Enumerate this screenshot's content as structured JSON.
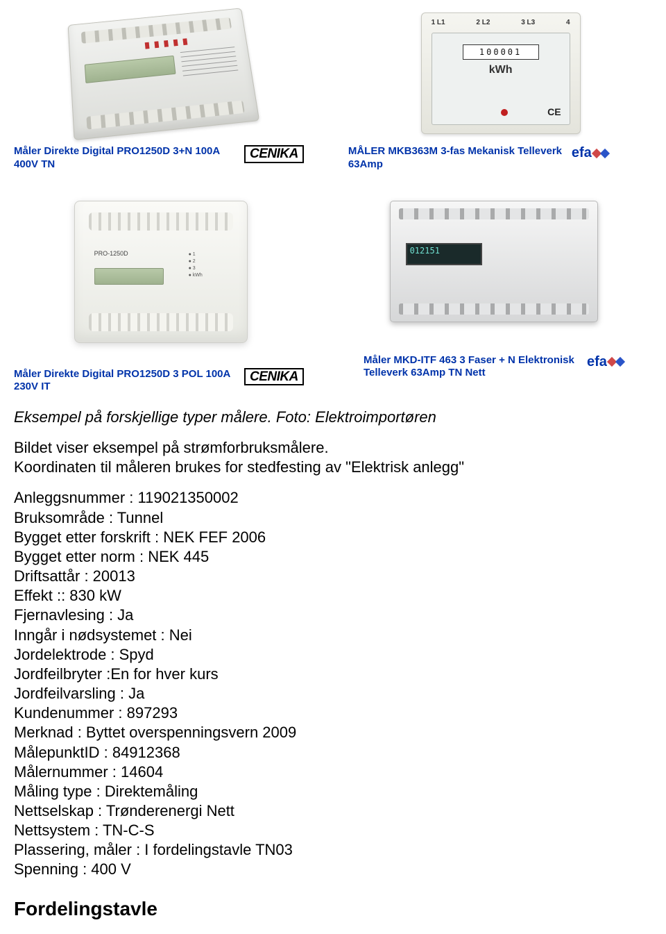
{
  "products": [
    {
      "title": "Måler Direkte Digital PRO1250D 3+N 100A 400V TN",
      "brand": "CENIKA",
      "counter": ""
    },
    {
      "title": "MÅLER MKB363M 3-fas Mekanisk Telleverk 63Amp",
      "brand": "efa",
      "counter": "100001",
      "kwh": "kWh",
      "ce": "CE",
      "term_labels": [
        "1 L1",
        "2 L2",
        "3 L3",
        "4"
      ]
    },
    {
      "title": "Måler Direkte Digital PRO1250D 3 POL 100A 230V IT",
      "brand": "CENIKA",
      "model": "PRO-1250D",
      "counter": ""
    },
    {
      "title": "Måler MKD-ITF 463 3 Faser + N Elektronisk Telleverk 63Amp TN Nett",
      "brand": "efa",
      "lcd": "012151"
    }
  ],
  "caption_italic": "Eksempel på forskjellige typer målere. Foto: Elektroimportøren",
  "intro": "Bildet viser eksempel på strømforbruksmålere.",
  "intro2": "Koordinaten til måleren brukes for stedfesting av \"Elektrisk anlegg\"",
  "fields": [
    "Anleggsnummer : 119021350002",
    "Bruksområde : Tunnel",
    "Bygget etter forskrift : NEK FEF 2006",
    "Bygget etter norm : NEK 445",
    "Driftsattår : 20013",
    "Effekt :: 830 kW",
    "Fjernavlesing : Ja",
    "Inngår i nødsystemet : Nei",
    "Jordelektrode : Spyd",
    "Jordfeilbryter :En for hver kurs",
    "Jordfeilvarsling : Ja",
    "Kundenummer : 897293",
    "Merknad : Byttet overspenningsvern 2009",
    "MålepunktID : 84912368",
    "Målernummer : 14604",
    "Måling type : Direktemåling",
    "Nettselskap : Trønderenergi Nett",
    "Nettsystem : TN-C-S",
    "Plassering, måler : I fordelingstavle TN03",
    "Spenning : 400 V"
  ],
  "section_heading": "Fordelingstavle",
  "colors": {
    "link_blue": "#0033aa",
    "text": "#000000",
    "bg": "#ffffff"
  }
}
